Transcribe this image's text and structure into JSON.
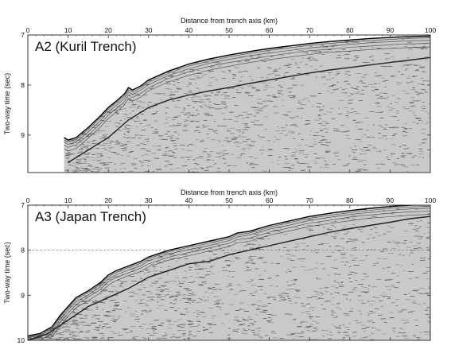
{
  "chart_data": [
    {
      "type": "seismic-profile",
      "panel_label": "A2 (Kuril Trench)",
      "xlabel": "Distance from trench axis (km)",
      "ylabel": "Two-way time (sec)",
      "xlim": [
        0,
        100
      ],
      "ylim": [
        7,
        9.75
      ],
      "x_ticks": [
        0,
        10,
        20,
        30,
        40,
        50,
        60,
        70,
        80,
        90,
        100
      ],
      "y_ticks": [
        7,
        8,
        9
      ],
      "dashed_levels": [
        7
      ],
      "data_start_x": 9,
      "seafloor": {
        "x": [
          9,
          10,
          12,
          15,
          18,
          20,
          22,
          24,
          25,
          26,
          28,
          30,
          35,
          40,
          45,
          50,
          55,
          60,
          65,
          70,
          75,
          80,
          85,
          90,
          95,
          100
        ],
        "y": [
          9.05,
          9.1,
          9.05,
          8.85,
          8.62,
          8.45,
          8.32,
          8.18,
          8.05,
          8.1,
          8.02,
          7.9,
          7.72,
          7.58,
          7.48,
          7.4,
          7.33,
          7.27,
          7.22,
          7.17,
          7.13,
          7.1,
          7.07,
          7.05,
          7.03,
          7.02
        ]
      },
      "reflector": {
        "x": [
          10,
          15,
          20,
          25,
          30,
          35,
          40,
          45,
          50,
          55,
          60,
          65,
          70,
          75,
          80,
          85,
          90,
          95,
          100
        ],
        "y": [
          9.55,
          9.3,
          9.05,
          8.7,
          8.45,
          8.3,
          8.2,
          8.12,
          8.05,
          7.97,
          7.9,
          7.83,
          7.76,
          7.7,
          7.65,
          7.6,
          7.55,
          7.5,
          7.45
        ]
      }
    },
    {
      "type": "seismic-profile",
      "panel_label": "A3 (Japan Trench)",
      "xlabel": "Distance from trench axis (km)",
      "ylabel": "Two-way time (sec)",
      "xlim": [
        0,
        100
      ],
      "ylim": [
        7,
        10
      ],
      "x_ticks": [
        0,
        10,
        20,
        30,
        40,
        50,
        60,
        70,
        80,
        90,
        100
      ],
      "y_ticks": [
        7,
        8,
        9,
        10
      ],
      "dashed_levels": [
        8
      ],
      "data_start_x": 0,
      "seafloor": {
        "x": [
          0,
          3,
          6,
          8,
          10,
          12,
          15,
          18,
          20,
          22,
          25,
          28,
          30,
          35,
          40,
          45,
          50,
          52,
          55,
          60,
          65,
          70,
          75,
          80,
          85,
          90,
          95,
          100
        ],
        "y": [
          9.9,
          9.85,
          9.7,
          9.45,
          9.25,
          9.05,
          8.9,
          8.72,
          8.55,
          8.45,
          8.35,
          8.25,
          8.15,
          8.0,
          7.9,
          7.8,
          7.7,
          7.62,
          7.58,
          7.45,
          7.35,
          7.25,
          7.18,
          7.12,
          7.07,
          7.03,
          7.0,
          6.98
        ]
      },
      "reflector": {
        "x": [
          0,
          5,
          10,
          15,
          20,
          25,
          30,
          35,
          40,
          45,
          50,
          55,
          60,
          65,
          70,
          75,
          80,
          85,
          90,
          95,
          100
        ],
        "y": [
          10.0,
          9.85,
          9.55,
          9.25,
          9.05,
          8.85,
          8.6,
          8.45,
          8.3,
          8.25,
          8.1,
          8.0,
          7.9,
          7.8,
          7.7,
          7.6,
          7.52,
          7.45,
          7.38,
          7.3,
          7.25
        ]
      }
    }
  ]
}
